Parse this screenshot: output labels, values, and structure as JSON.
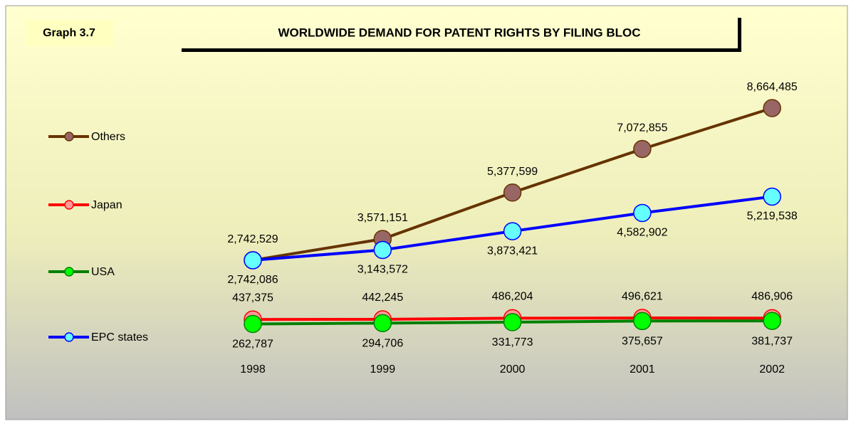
{
  "chart_data": {
    "type": "line",
    "label": "Graph 3.7",
    "title": "WORLDWIDE DEMAND FOR PATENT RIGHTS BY FILING BLOC",
    "categories": [
      "1998",
      "1999",
      "2000",
      "2001",
      "2002"
    ],
    "series": [
      {
        "name": "Others",
        "color": "#663300",
        "marker_color": "#996666",
        "values": [
          2742529,
          3571151,
          5377599,
          7072855,
          8664485
        ],
        "value_labels": [
          "2,742,529",
          "3,571,151",
          "5,377,599",
          "7,072,855",
          "8,664,485"
        ]
      },
      {
        "name": "Japan",
        "color": "#ff0000",
        "marker_color": "#ff9999",
        "values": [
          437375,
          442245,
          486204,
          496621,
          486906
        ],
        "value_labels": [
          "437,375",
          "442,245",
          "486,204",
          "496,621",
          "486,906"
        ]
      },
      {
        "name": "USA",
        "color": "#008000",
        "marker_color": "#00ff00",
        "values": [
          262787,
          294706,
          331773,
          375657,
          381737
        ],
        "value_labels": [
          "262,787",
          "294,706",
          "331,773",
          "375,657",
          "381,737"
        ]
      },
      {
        "name": "EPC states",
        "color": "#0000ff",
        "marker_color": "#66ffff",
        "values": [
          2742086,
          3143572,
          3873421,
          4582902,
          5219538
        ],
        "value_labels": [
          "2,742,086",
          "3,143,572",
          "3,873,421",
          "4,582,902",
          "5,219,538"
        ]
      }
    ],
    "legend": "left"
  }
}
